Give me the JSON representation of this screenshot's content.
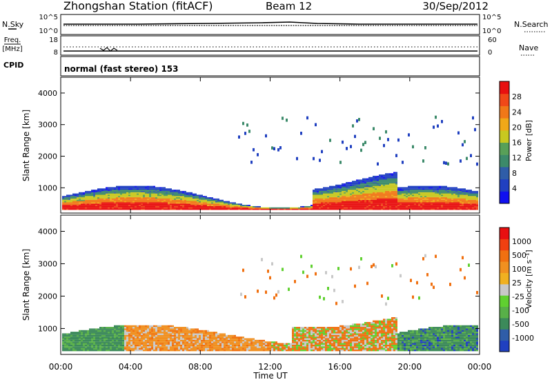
{
  "header": {
    "station": "Zhongshan Station (fitACF)",
    "beam": "Beam 12",
    "date": "30/Sep/2012"
  },
  "noise_panel": {
    "left_label": "N.Sky",
    "right_label": "N.Search",
    "left_ticks": [
      "10^5",
      "10^0"
    ],
    "right_ticks": [
      "10^5",
      "10^0"
    ]
  },
  "freq_panel": {
    "left_label_line1": "Freq.",
    "left_label_line2": "[MHz]",
    "right_label": "Nave",
    "left_ticks": [
      "18",
      "8"
    ],
    "right_ticks": [
      "60",
      "0"
    ]
  },
  "cpid": {
    "label": "CPID",
    "value": "normal (fast stereo) 153"
  },
  "chart_data": [
    {
      "type": "heatmap",
      "title": "",
      "xlabel": "Time UT",
      "ylabel": "Slant Range [km]",
      "x_ticks": [
        "00:00",
        "04:00",
        "08:00",
        "12:00",
        "16:00",
        "20:00",
        "00:00"
      ],
      "y_ticks": [
        "1000",
        "2000",
        "3000",
        "4000"
      ],
      "ylim": [
        200,
        4500
      ],
      "colorbar": {
        "label": "Power [dB]",
        "ticks": [
          "4",
          "8",
          "12",
          "16",
          "20",
          "24",
          "28"
        ],
        "colors": [
          "#1010f0",
          "#2040c0",
          "#2f5da8",
          "#3c8a6a",
          "#58a058",
          "#c8c820",
          "#f0a818",
          "#f07818",
          "#f04818",
          "#e81010"
        ]
      }
    },
    {
      "type": "heatmap",
      "title": "",
      "xlabel": "Time UT",
      "ylabel": "Slant Range [km]",
      "x_ticks": [
        "00:00",
        "04:00",
        "08:00",
        "12:00",
        "16:00",
        "20:00",
        "00:00"
      ],
      "y_ticks": [
        "1000",
        "2000",
        "3000",
        "4000"
      ],
      "ylim": [
        200,
        4500
      ],
      "colorbar": {
        "label": "Velocity [m s⁻¹]",
        "ticks": [
          "1000",
          "500",
          "100",
          "25",
          "-25",
          "-100",
          "-500",
          "-1000"
        ],
        "colors": [
          "#2040c0",
          "#2f5da8",
          "#3c8a5a",
          "#58b048",
          "#60d030",
          "#c8c8c8",
          "#f0b020",
          "#f09020",
          "#f07010",
          "#f04010",
          "#e81010"
        ]
      }
    }
  ]
}
